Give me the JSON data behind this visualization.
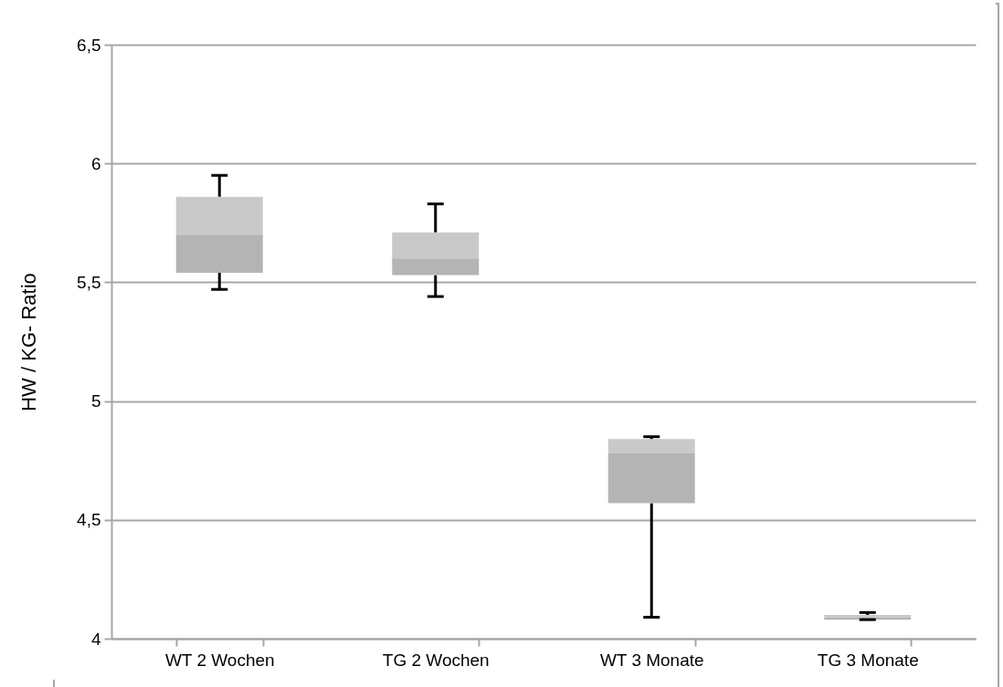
{
  "chart_data": {
    "type": "box",
    "ylabel": "HW / KG- Ratio",
    "categories": [
      "WT 2 Wochen",
      "TG 2 Wochen",
      "WT 3 Monate",
      "TG 3 Monate"
    ],
    "series": [
      {
        "color": "#b4b4b4",
        "boxes": [
          {
            "low": 5.47,
            "q1": 5.54,
            "median": 5.7,
            "q3": 5.86,
            "high": 5.95
          },
          {
            "low": 5.44,
            "q1": 5.53,
            "median": 5.6,
            "q3": 5.71,
            "high": 5.83
          },
          {
            "low": 4.09,
            "q1": 4.57,
            "median": 4.78,
            "q3": 4.84,
            "high": 4.85
          },
          {
            "low": 4.08,
            "q1": 4.08,
            "median": 4.09,
            "q3": 4.1,
            "high": 4.11
          }
        ]
      }
    ],
    "ylim": [
      4,
      6.5
    ],
    "yticks": [
      {
        "value": 4,
        "label": "4"
      },
      {
        "value": 4.5,
        "label": "4,5"
      },
      {
        "value": 5,
        "label": "5"
      },
      {
        "value": 5.5,
        "label": "5,5"
      },
      {
        "value": 6,
        "label": "6"
      },
      {
        "value": 6.5,
        "label": "6,5"
      }
    ],
    "grid": "y"
  }
}
